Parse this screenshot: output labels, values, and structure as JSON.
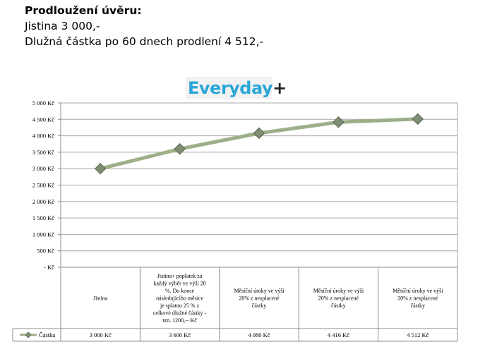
{
  "intro": {
    "heading": "Prodloužení úvěru:",
    "principal": "Jistina 3 000,-",
    "debt": "Dlužná částka po 60 dnech prodlení 4 512,-"
  },
  "logo": {
    "word": "Everyday",
    "plus": "+",
    "brand_color": "#2aa7d8"
  },
  "chart_data": {
    "type": "line",
    "categories": [
      "Jistina",
      "Jistina+ poplatek za každý výběr ve výši 20 %. Do konce následujícího měsíce je splatno 25 % z celkové dlužné částky - tzn. 1200,-- Kč",
      "Měsíční úroky ve výši 20% z nesplacené částky",
      "Měsíční úroky ve výši 20% z nesplacené částky",
      "Měsíční úroky ve výši 20% z nesplacené částky"
    ],
    "category_lines": [
      [
        "Jistina"
      ],
      [
        "Jistina+ poplatek za",
        "každý výběr ve výši 20",
        "%. Do konce",
        "následujícího měsíce",
        "je splatno 25 % z",
        "celkové dlužné částky -",
        "tzn. 1200,-- Kč"
      ],
      [
        "Měsíční úroky ve výši",
        "20% z nesplacené",
        "částky"
      ],
      [
        "Měsíční úroky ve výši",
        "20% z nesplacené",
        "částky"
      ],
      [
        "Měsíční úroky ve výši",
        "20% z nesplacené",
        "částky"
      ]
    ],
    "series": [
      {
        "name": "Částka",
        "values": [
          3000,
          3600,
          4080,
          4416,
          4512
        ],
        "value_labels": [
          "3 000 Kč",
          "3 600 Kč",
          "4 080 Kč",
          "4 416 Kč",
          "4 512 Kč"
        ],
        "color": "#9caf88"
      }
    ],
    "ylim": [
      0,
      5000
    ],
    "yticks": [
      0,
      500,
      1000,
      1500,
      2000,
      2500,
      3000,
      3500,
      4000,
      4500,
      5000
    ],
    "ytick_labels": [
      "- Kč",
      "500 Kč",
      "1 000 Kč",
      "1 500 Kč",
      "2 000 Kč",
      "2 500 Kč",
      "3 000 Kč",
      "3 500 Kč",
      "4 000 Kč",
      "4 500 Kč",
      "5 000 Kč"
    ],
    "grid": true,
    "data_table": true
  }
}
